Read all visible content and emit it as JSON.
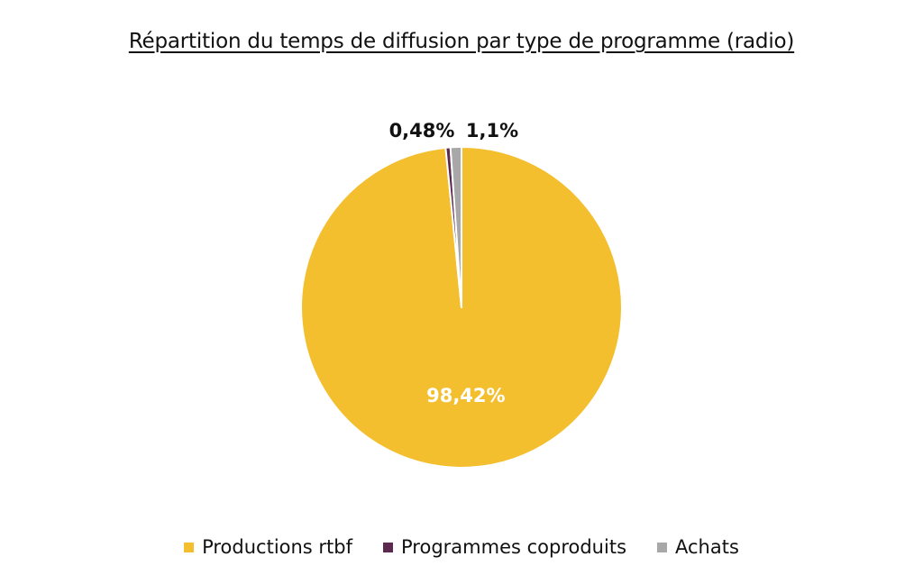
{
  "chart_data": {
    "type": "pie",
    "title": "Répartition du temps de diffusion par type de programme (radio)",
    "categories": [
      "Productions rtbf",
      "Programmes coproduits",
      "Achats"
    ],
    "values": [
      98.42,
      0.48,
      1.1
    ],
    "labels": [
      "98,42%",
      "0,48%",
      "1,1%"
    ],
    "colors": [
      "#F4BF2E",
      "#5B2A4E",
      "#A8A8A8"
    ],
    "label_colors": [
      "#ffffff",
      "#111111",
      "#111111"
    ],
    "legend_position": "bottom"
  }
}
